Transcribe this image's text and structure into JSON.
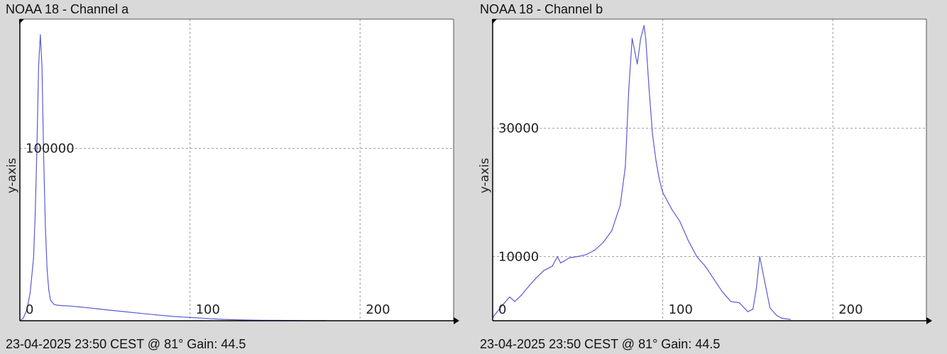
{
  "panels": [
    {
      "title": "NOAA 18 - Channel a",
      "footer": "23-04-2025 23:50 CEST @ 81° Gain: 44.5"
    },
    {
      "title": "NOAA 18 - Channel b",
      "footer": "23-04-2025 23:50 CEST @ 81° Gain: 44.5"
    }
  ],
  "colors": {
    "line": "#5a5ad6",
    "grid": "#9a9a9a",
    "axis": "#000000",
    "background": "#d9d9d9",
    "plot": "#ffffff"
  },
  "chart_data": [
    {
      "type": "line",
      "title": "NOAA 18 - Channel a",
      "xlabel": "",
      "ylabel": "y-axis",
      "xlim": [
        0,
        255
      ],
      "ylim": [
        0,
        175000
      ],
      "x_ticks": [
        0,
        100,
        200
      ],
      "x_tick_labels": [
        "0",
        "100",
        "200"
      ],
      "y_ticks": [
        100000
      ],
      "y_tick_labels": [
        "100000"
      ],
      "grid": true,
      "x_gridlines": [
        100,
        200
      ],
      "y_gridlines": [
        100000
      ],
      "series": [
        {
          "x": [
            0,
            2,
            4,
            6,
            8,
            9,
            10,
            11,
            12,
            13,
            14,
            15,
            16,
            17,
            18,
            20,
            22,
            25,
            30,
            35,
            40,
            45,
            50,
            60,
            70,
            80,
            90,
            100,
            110,
            120,
            130,
            140,
            150,
            160,
            170,
            180
          ],
          "y": [
            0,
            1500,
            6000,
            16000,
            36000,
            62000,
            100000,
            148000,
            166000,
            148000,
            95000,
            55000,
            30000,
            18000,
            12000,
            9500,
            9000,
            8800,
            8500,
            8000,
            7500,
            7000,
            6400,
            5400,
            4400,
            3400,
            2500,
            1900,
            1300,
            800,
            500,
            300,
            200,
            150,
            100,
            60
          ]
        }
      ]
    },
    {
      "type": "line",
      "title": "NOAA 18 - Channel b",
      "xlabel": "",
      "ylabel": "y-axis",
      "xlim": [
        0,
        255
      ],
      "ylim": [
        0,
        47000
      ],
      "x_ticks": [
        0,
        100,
        200
      ],
      "x_tick_labels": [
        "0",
        "100",
        "200"
      ],
      "y_ticks": [
        10000,
        30000
      ],
      "y_tick_labels": [
        "10000",
        "30000"
      ],
      "grid": true,
      "x_gridlines": [
        100,
        200
      ],
      "y_gridlines": [
        10000,
        30000
      ],
      "series": [
        {
          "x": [
            0,
            3,
            6,
            10,
            13,
            17,
            20,
            25,
            30,
            35,
            38,
            40,
            42,
            45,
            50,
            55,
            60,
            65,
            70,
            75,
            78,
            80,
            82,
            85,
            87,
            89,
            90,
            92,
            94,
            96,
            98,
            100,
            105,
            110,
            115,
            120,
            125,
            130,
            135,
            140,
            145,
            150,
            153,
            155,
            157,
            160,
            163,
            167,
            170,
            175
          ],
          "y": [
            500,
            1500,
            2500,
            3700,
            3000,
            4000,
            5000,
            6500,
            7800,
            8500,
            10000,
            9000,
            9300,
            9800,
            10000,
            10300,
            11000,
            12200,
            14000,
            18000,
            24000,
            36000,
            44000,
            40000,
            44000,
            46000,
            44000,
            36000,
            29000,
            25000,
            22000,
            20000,
            17500,
            15500,
            12500,
            10000,
            8500,
            6500,
            4500,
            3000,
            2800,
            1400,
            1800,
            5000,
            10000,
            6000,
            2000,
            800,
            400,
            200
          ]
        }
      ]
    }
  ]
}
